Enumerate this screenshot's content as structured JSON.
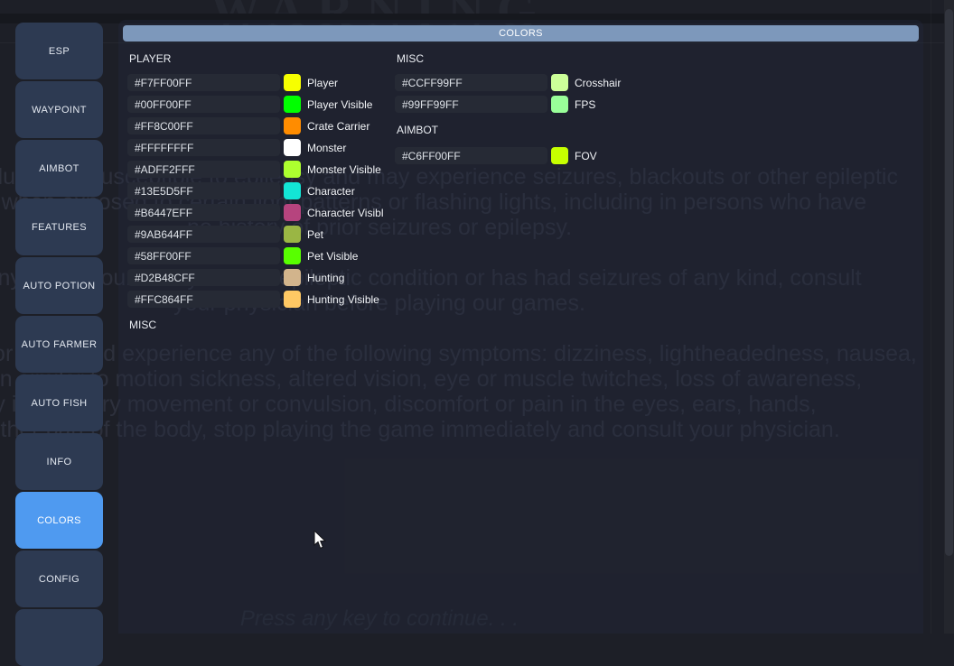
{
  "background": {
    "title": "WARNING",
    "paragraphs": [
      [
        "Some individuals are susceptible to epilepsy and may experience seizures, blackouts or other epileptic",
        "symptoms when exposed to certain light patterns or flashing lights, including in persons who have",
        "no history of prior seizures or epilepsy."
      ],
      [
        "If you or anyone in your family has an epileptic condition or has had seizures of any kind, consult",
        "your physician before playing our games."
      ],
      [
        "Should you or your child experience any of the following symptoms: dizziness, lightheadedness, nausea,",
        "a sensation similar to motion sickness, altered vision, eye or muscle twitches, loss of awareness,",
        "or any involuntary movement or convulsion, discomfort or pain in the eyes, ears, hands,",
        "or any other part of the body, stop playing the game immediately and consult your physician."
      ]
    ],
    "press_any_key": "Press any key to continue. . ."
  },
  "sidebar": {
    "items": [
      {
        "label": "ESP",
        "selected": false
      },
      {
        "label": "WAYPOINT",
        "selected": false
      },
      {
        "label": "AIMBOT",
        "selected": false
      },
      {
        "label": "FEATURES",
        "selected": false
      },
      {
        "label": "AUTO POTION",
        "selected": false
      },
      {
        "label": "AUTO FARMER",
        "selected": false
      },
      {
        "label": "AUTO FISH",
        "selected": false
      },
      {
        "label": "INFO",
        "selected": false
      },
      {
        "label": "COLORS",
        "selected": true
      },
      {
        "label": "CONFIG",
        "selected": false
      },
      {
        "label": "",
        "selected": false
      }
    ]
  },
  "panel": {
    "header_title": "COLORS",
    "columns": {
      "left": [
        {
          "title": "PLAYER",
          "rows": [
            {
              "hex": "#F7FF00FF",
              "label": "Player"
            },
            {
              "hex": "#00FF00FF",
              "label": "Player Visible"
            },
            {
              "hex": "#FF8C00FF",
              "label": "Crate Carrier"
            },
            {
              "hex": "#FFFFFFFF",
              "label": "Monster"
            },
            {
              "hex": "#ADFF2FFF",
              "label": "Monster Visible"
            },
            {
              "hex": "#13E5D5FF",
              "label": "Character"
            },
            {
              "hex": "#B6447EFF",
              "label": "Character Visibl"
            },
            {
              "hex": "#9AB644FF",
              "label": "Pet"
            },
            {
              "hex": "#58FF00FF",
              "label": "Pet Visible"
            },
            {
              "hex": "#D2B48CFF",
              "label": "Hunting"
            },
            {
              "hex": "#FFC864FF",
              "label": "Hunting Visible"
            }
          ]
        },
        {
          "title": "MISC",
          "rows": []
        }
      ],
      "right": [
        {
          "title": "MISC",
          "rows": [
            {
              "hex": "#CCFF99FF",
              "label": "Crosshair"
            },
            {
              "hex": "#99FF99FF",
              "label": "FPS"
            }
          ]
        },
        {
          "title": "AIMBOT",
          "rows": [
            {
              "hex": "#C6FF00FF",
              "label": "FOV"
            }
          ]
        }
      ]
    }
  },
  "colors": {
    "accent_selected_tab": "#4f9af0",
    "panel_header_bar": "#7d98bb",
    "sidebar_button": "#2d3a52",
    "field_background": "#262a35",
    "game_background": "#1d1f27"
  }
}
